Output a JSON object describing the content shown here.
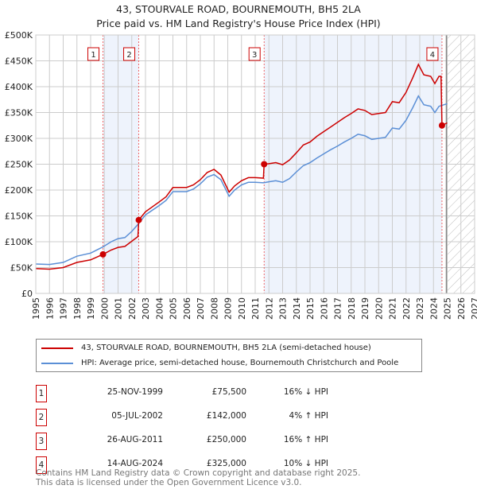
{
  "chart_data": {
    "type": "line",
    "title": "43, STOURVALE ROAD, BOURNEMOUTH, BH5 2LA",
    "subtitle": "Price paid vs. HM Land Registry's House Price Index (HPI)",
    "xlim": [
      1995,
      2027
    ],
    "ylim": [
      0,
      500000
    ],
    "x_ticks": [
      "1995",
      "1996",
      "1997",
      "1998",
      "1999",
      "2000",
      "2001",
      "2002",
      "2003",
      "2004",
      "2005",
      "2006",
      "2007",
      "2008",
      "2009",
      "2010",
      "2011",
      "2012",
      "2013",
      "2014",
      "2015",
      "2016",
      "2017",
      "2018",
      "2019",
      "2020",
      "2021",
      "2022",
      "2023",
      "2024",
      "2025",
      "2026",
      "2027"
    ],
    "y_ticks": [
      {
        "v": 0,
        "l": "£0"
      },
      {
        "v": 50000,
        "l": "£50K"
      },
      {
        "v": 100000,
        "l": "£100K"
      },
      {
        "v": 150000,
        "l": "£150K"
      },
      {
        "v": 200000,
        "l": "£200K"
      },
      {
        "v": 250000,
        "l": "£250K"
      },
      {
        "v": 300000,
        "l": "£300K"
      },
      {
        "v": 350000,
        "l": "£350K"
      },
      {
        "v": 400000,
        "l": "£400K"
      },
      {
        "v": 450000,
        "l": "£450K"
      },
      {
        "v": 500000,
        "l": "£500K"
      }
    ],
    "grid": true,
    "forecast_start": 2025,
    "shaded_ranges": [
      [
        1999.9,
        2002.51
      ],
      [
        2011.65,
        2024.62
      ]
    ],
    "series": [
      {
        "name": "43, STOURVALE ROAD, BOURNEMOUTH, BH5 2LA (semi-detached house)",
        "color": "#cc0000",
        "points": [
          [
            1995,
            48
          ],
          [
            1996,
            47
          ],
          [
            1997,
            50
          ],
          [
            1998,
            60
          ],
          [
            1999,
            65
          ],
          [
            1999.9,
            75.5
          ],
          [
            2000.5,
            84
          ],
          [
            2001,
            89
          ],
          [
            2001.5,
            91
          ],
          [
            2002,
            101
          ],
          [
            2002.45,
            110
          ],
          [
            2002.51,
            142
          ],
          [
            2003,
            158
          ],
          [
            2004,
            177
          ],
          [
            2004.5,
            187
          ],
          [
            2005,
            205
          ],
          [
            2005.5,
            205
          ],
          [
            2006,
            205
          ],
          [
            2006.5,
            210
          ],
          [
            2007,
            220
          ],
          [
            2007.5,
            234
          ],
          [
            2008,
            240
          ],
          [
            2008.5,
            229
          ],
          [
            2009.1,
            196
          ],
          [
            2009.5,
            208
          ],
          [
            2010,
            218
          ],
          [
            2010.5,
            224
          ],
          [
            2011,
            224
          ],
          [
            2011.6,
            223
          ],
          [
            2011.65,
            250
          ],
          [
            2012,
            251
          ],
          [
            2012.5,
            253
          ],
          [
            2013,
            249
          ],
          [
            2013.5,
            258
          ],
          [
            2014,
            272
          ],
          [
            2014.5,
            287
          ],
          [
            2015,
            293
          ],
          [
            2015.5,
            304
          ],
          [
            2016,
            313
          ],
          [
            2016.5,
            322
          ],
          [
            2017,
            331
          ],
          [
            2017.5,
            340
          ],
          [
            2018,
            348
          ],
          [
            2018.5,
            357
          ],
          [
            2019,
            354
          ],
          [
            2019.5,
            346
          ],
          [
            2020,
            348
          ],
          [
            2020.5,
            350
          ],
          [
            2021,
            371
          ],
          [
            2021.5,
            369
          ],
          [
            2022,
            389
          ],
          [
            2022.5,
            418
          ],
          [
            2022.9,
            443
          ],
          [
            2023.3,
            423
          ],
          [
            2023.8,
            420
          ],
          [
            2024.1,
            406
          ],
          [
            2024.4,
            420
          ],
          [
            2024.55,
            420
          ],
          [
            2024.62,
            325
          ],
          [
            2025,
            330
          ]
        ]
      },
      {
        "name": "HPI: Average price, semi-detached house, Bournemouth Christchurch and Poole",
        "color": "#5b8fd6",
        "points": [
          [
            1995,
            57
          ],
          [
            1996,
            56
          ],
          [
            1997,
            60
          ],
          [
            1998,
            72
          ],
          [
            1999,
            78
          ],
          [
            1999.9,
            90
          ],
          [
            2000.5,
            100
          ],
          [
            2001,
            106
          ],
          [
            2001.5,
            108
          ],
          [
            2002,
            120
          ],
          [
            2002.5,
            135
          ],
          [
            2003,
            152
          ],
          [
            2004,
            170
          ],
          [
            2004.5,
            180
          ],
          [
            2005,
            197
          ],
          [
            2005.5,
            197
          ],
          [
            2006,
            197
          ],
          [
            2006.5,
            202
          ],
          [
            2007,
            212
          ],
          [
            2007.5,
            225
          ],
          [
            2008,
            230
          ],
          [
            2008.5,
            220
          ],
          [
            2009.1,
            188
          ],
          [
            2009.5,
            200
          ],
          [
            2010,
            210
          ],
          [
            2010.5,
            215
          ],
          [
            2011,
            215
          ],
          [
            2011.6,
            214
          ],
          [
            2012,
            216
          ],
          [
            2012.5,
            218
          ],
          [
            2013,
            215
          ],
          [
            2013.5,
            222
          ],
          [
            2014,
            235
          ],
          [
            2014.5,
            247
          ],
          [
            2015,
            253
          ],
          [
            2015.5,
            262
          ],
          [
            2016,
            270
          ],
          [
            2016.5,
            278
          ],
          [
            2017,
            285
          ],
          [
            2017.5,
            293
          ],
          [
            2018,
            300
          ],
          [
            2018.5,
            308
          ],
          [
            2019,
            305
          ],
          [
            2019.5,
            298
          ],
          [
            2020,
            300
          ],
          [
            2020.5,
            302
          ],
          [
            2021,
            320
          ],
          [
            2021.5,
            318
          ],
          [
            2022,
            335
          ],
          [
            2022.5,
            360
          ],
          [
            2022.9,
            382
          ],
          [
            2023.3,
            365
          ],
          [
            2023.8,
            362
          ],
          [
            2024.1,
            350
          ],
          [
            2024.4,
            362
          ],
          [
            2025,
            367
          ]
        ]
      }
    ],
    "value_unit": "thousand GBP",
    "sales": [
      {
        "n": "1",
        "x": 1999.9,
        "v": 75.5,
        "date": "25-NOV-1999",
        "price": "£75,500",
        "hpi": "16% ↓ HPI"
      },
      {
        "n": "2",
        "x": 2002.51,
        "v": 142,
        "date": "05-JUL-2002",
        "price": "£142,000",
        "hpi": "4% ↑ HPI"
      },
      {
        "n": "3",
        "x": 2011.65,
        "v": 250,
        "date": "26-AUG-2011",
        "price": "£250,000",
        "hpi": "16% ↑ HPI"
      },
      {
        "n": "4",
        "x": 2024.62,
        "v": 325,
        "date": "14-AUG-2024",
        "price": "£325,000",
        "hpi": "10% ↓ HPI"
      }
    ]
  },
  "footer": {
    "line1": "Contains HM Land Registry data © Crown copyright and database right 2025.",
    "line2": "This data is licensed under the Open Government Licence v3.0."
  }
}
